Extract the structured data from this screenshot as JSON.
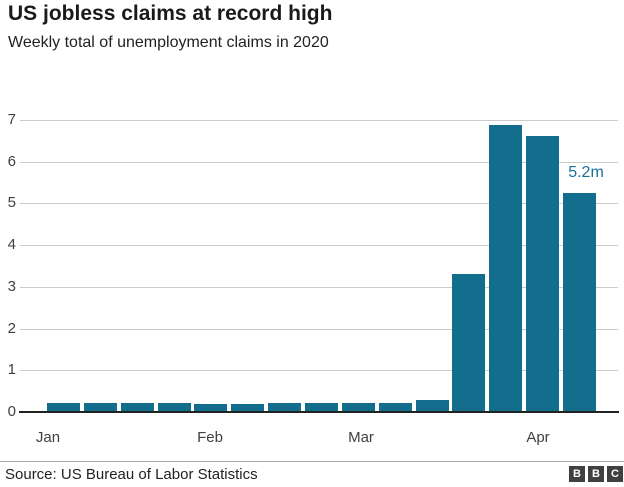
{
  "header": {
    "title": "US jobless claims at record high",
    "subtitle": "Weekly total of unemployment claims in 2020"
  },
  "chart_data": {
    "type": "bar",
    "title": "US jobless claims at record high",
    "subtitle": "Weekly total of unemployment claims in 2020",
    "unit": "millions of claims per week",
    "values": [
      0.21,
      0.21,
      0.22,
      0.21,
      0.2,
      0.2,
      0.21,
      0.22,
      0.22,
      0.21,
      0.28,
      3.31,
      6.87,
      6.62,
      5.25
    ],
    "annotation": {
      "text": "5.2m",
      "bar_index": 14
    },
    "x_tick_labels": [
      "Jan",
      "Feb",
      "Mar",
      "Apr"
    ],
    "y_ticks": [
      0,
      1,
      2,
      3,
      4,
      5,
      6,
      7
    ],
    "ylim": [
      0,
      7
    ],
    "grid": "horizontal",
    "bar_color": "#136d8d",
    "annotation_color": "#1c6f9b",
    "axis_label_color": "#404040"
  },
  "footer": {
    "source": "Source: US Bureau of Labor Statistics",
    "logo_blocks": [
      "B",
      "B",
      "C"
    ]
  }
}
